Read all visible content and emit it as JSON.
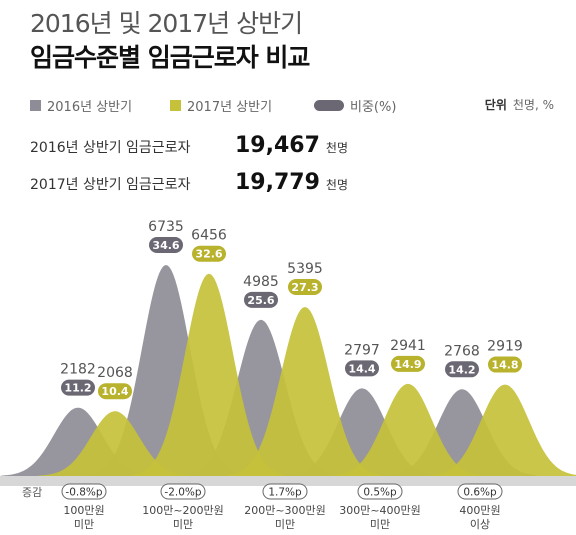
{
  "header": {
    "title_line1": "2016년 및 2017년 상반기",
    "title_line2": "임금수준별 임금근로자 비교"
  },
  "legend": {
    "item_2016": "2016년 상반기",
    "item_2017": "2017년 상반기",
    "item_share": "비중(%)",
    "unit_label": "단위",
    "unit_value": "천명, %"
  },
  "summary": {
    "row_2016_label": "2016년 상반기 임금근로자",
    "row_2016_value": "19,467",
    "row_2016_unit": "천명",
    "row_2017_label": "2017년 상반기 임금근로자",
    "row_2017_value": "19,779",
    "row_2017_unit": "천명"
  },
  "colors": {
    "gray": "#8e8c96",
    "gray_dark": "#6b6874",
    "olive": "#c5c13a",
    "olive_dark": "#b8b22c",
    "axis": "#d7d7d7"
  },
  "chart_data": {
    "type": "area",
    "categories": [
      "100만원\n미만",
      "100만~200만원\n미만",
      "200만~300만원\n미만",
      "300만~400만원\n미만",
      "400만원\n이상"
    ],
    "series": [
      {
        "name": "2016년 상반기",
        "values": [
          2182,
          6735,
          4985,
          2797,
          2768
        ],
        "shares": [
          "11.2",
          "34.6",
          "25.6",
          "14.4",
          "14.2"
        ]
      },
      {
        "name": "2017년 상반기",
        "values": [
          2068,
          6456,
          5395,
          2941,
          2919
        ],
        "shares": [
          "10.4",
          "32.6",
          "27.3",
          "14.9",
          "14.8"
        ]
      }
    ],
    "change_label": "증감",
    "changes": [
      "-0.8%p",
      "-2.0%p",
      "1.7%p",
      "0.5%p",
      "0.6%p"
    ],
    "ylim": [
      0,
      6735
    ]
  }
}
